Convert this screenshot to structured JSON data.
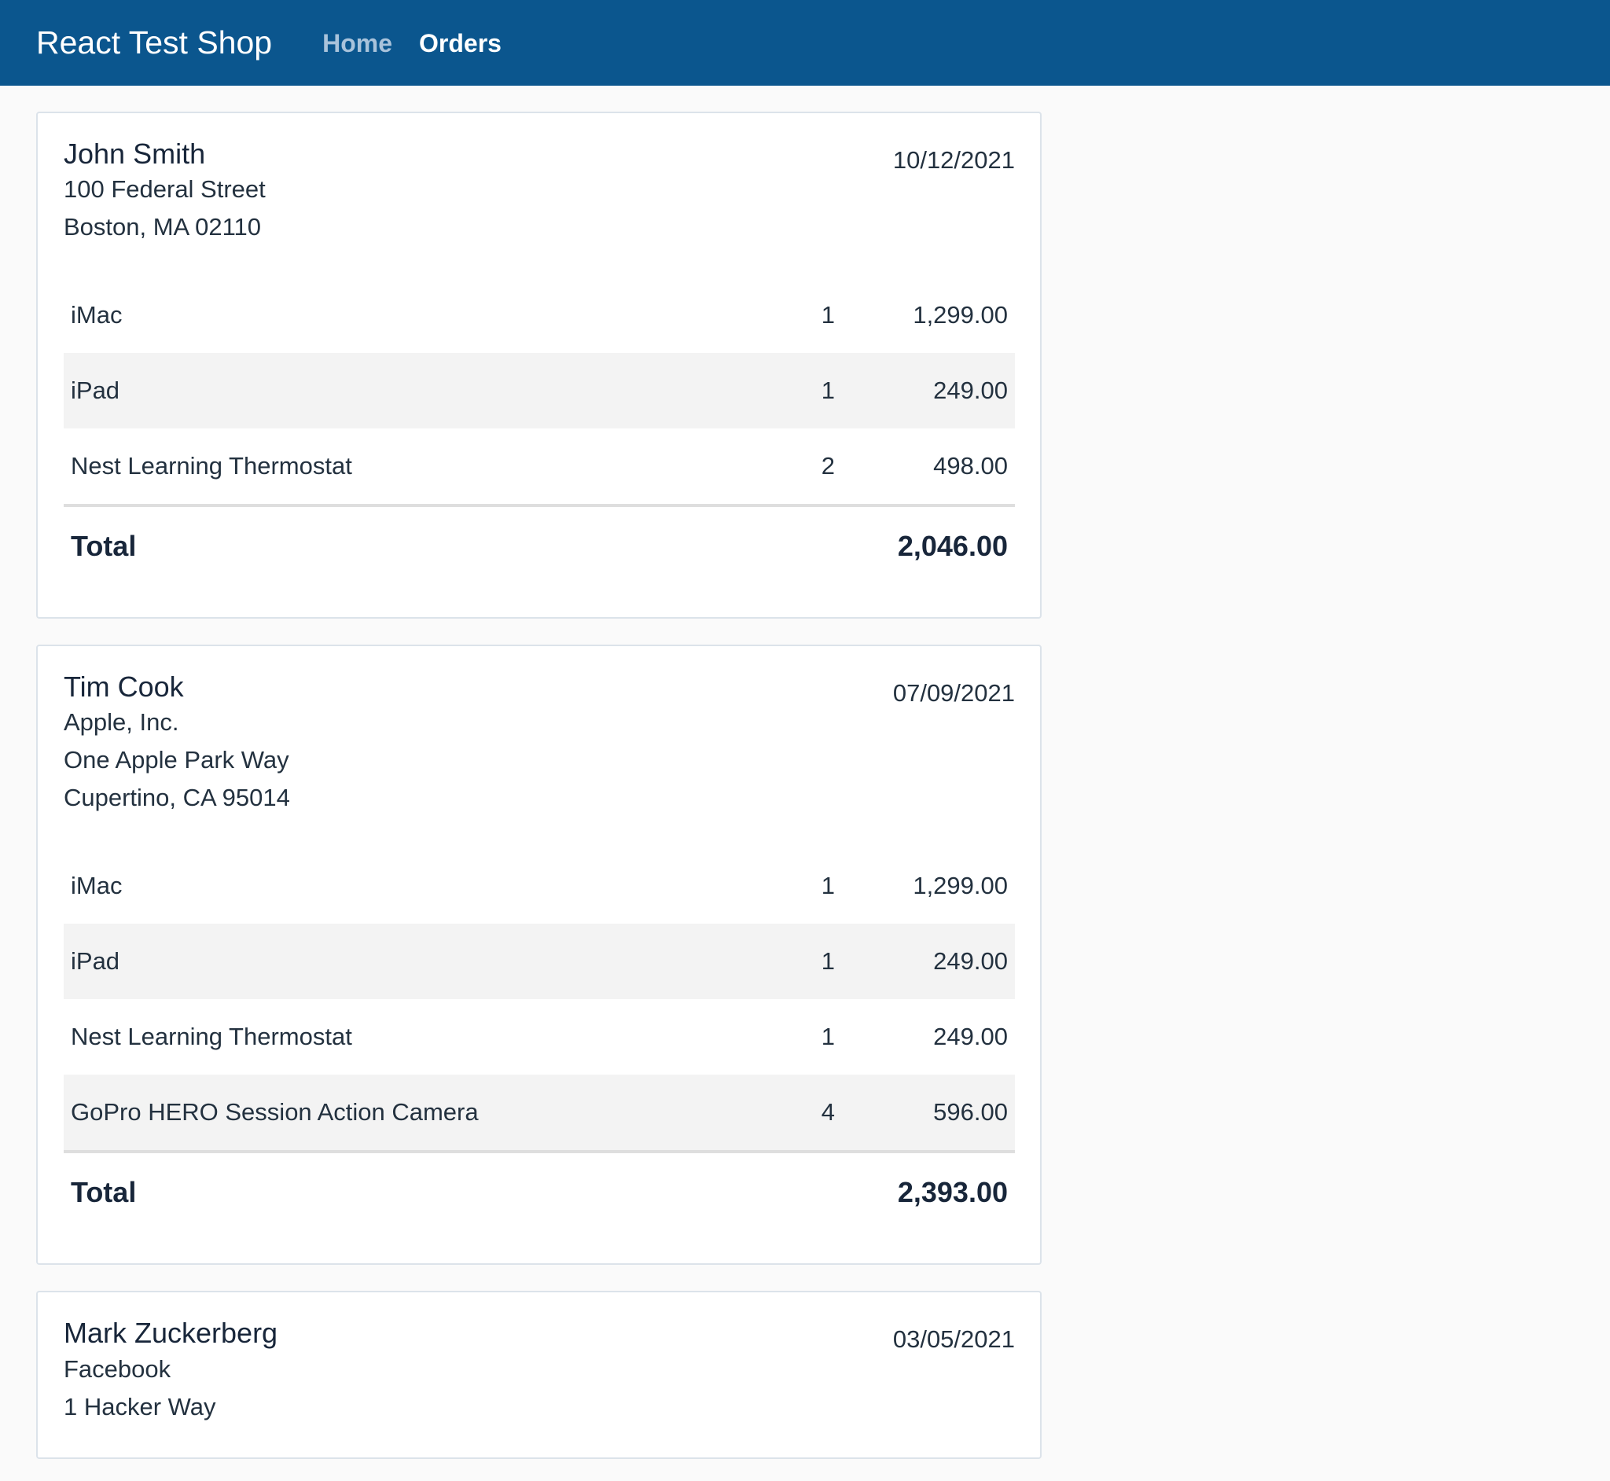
{
  "header": {
    "brand": "React Test Shop",
    "nav": [
      {
        "label": "Home",
        "active": false
      },
      {
        "label": "Orders",
        "active": true
      }
    ],
    "background_color": "#0b568e"
  },
  "orders": [
    {
      "name": "John Smith",
      "address": [
        "100 Federal Street",
        "Boston, MA 02110"
      ],
      "date": "10/12/2021",
      "items": [
        {
          "name": "iMac",
          "qty": "1",
          "price": "1,299.00"
        },
        {
          "name": "iPad",
          "qty": "1",
          "price": "249.00"
        },
        {
          "name": "Nest Learning Thermostat",
          "qty": "2",
          "price": "498.00"
        }
      ],
      "total_label": "Total",
      "total": "2,046.00"
    },
    {
      "name": "Tim Cook",
      "address": [
        "Apple, Inc.",
        "One Apple Park Way",
        "Cupertino, CA 95014"
      ],
      "date": "07/09/2021",
      "items": [
        {
          "name": "iMac",
          "qty": "1",
          "price": "1,299.00"
        },
        {
          "name": "iPad",
          "qty": "1",
          "price": "249.00"
        },
        {
          "name": "Nest Learning Thermostat",
          "qty": "1",
          "price": "249.00"
        },
        {
          "name": "GoPro HERO Session Action Camera",
          "qty": "4",
          "price": "596.00"
        }
      ],
      "total_label": "Total",
      "total": "2,393.00"
    },
    {
      "name": "Mark Zuckerberg",
      "address": [
        "Facebook",
        "1 Hacker Way"
      ],
      "date": "03/05/2021",
      "items": [],
      "total_label": "",
      "total": ""
    }
  ]
}
